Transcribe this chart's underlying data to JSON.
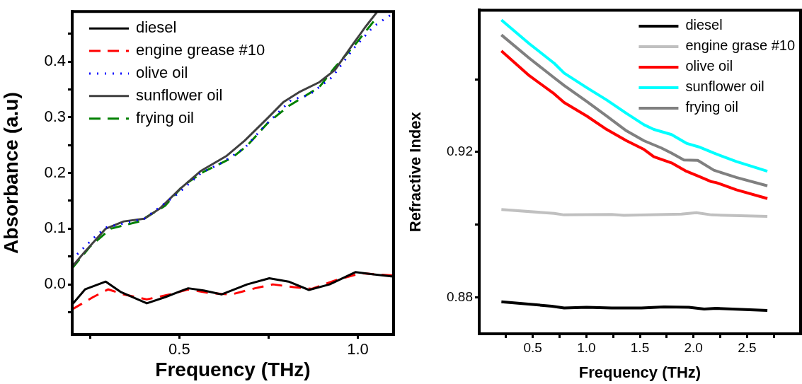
{
  "chart_data": [
    {
      "type": "line",
      "xlabel": "Frequency (THz)",
      "ylabel": "Absorbance (a.u)",
      "xlim": [
        0.2,
        1.1
      ],
      "ylim": [
        -0.09,
        0.49
      ],
      "xticks": [
        {
          "value": 0.25,
          "label": null
        },
        {
          "value": 0.5,
          "label": "0.5"
        },
        {
          "value": 0.75,
          "label": null
        },
        {
          "value": 1.0,
          "label": "1.0"
        }
      ],
      "yticks": [
        {
          "value": -0.05,
          "label": null
        },
        {
          "value": 0,
          "label": "0.0"
        },
        {
          "value": 0.05,
          "label": null
        },
        {
          "value": 0.1,
          "label": "0.1"
        },
        {
          "value": 0.15,
          "label": null
        },
        {
          "value": 0.2,
          "label": "0.2"
        },
        {
          "value": 0.25,
          "label": null
        },
        {
          "value": 0.3,
          "label": "0.3"
        },
        {
          "value": 0.35,
          "label": null
        },
        {
          "value": 0.4,
          "label": "0.4"
        },
        {
          "value": 0.45,
          "label": null
        }
      ],
      "legend": "top left",
      "marker": "none",
      "series": [
        {
          "name": "diesel",
          "color": "#000000",
          "line_style": "solid",
          "x": [
            0.2,
            0.236,
            0.294,
            0.337,
            0.409,
            0.46,
            0.525,
            0.568,
            0.618,
            0.69,
            0.752,
            0.806,
            0.863,
            0.921,
            0.993,
            1.044,
            1.098
          ],
          "values": [
            -0.036,
            -0.009,
            0.005,
            -0.014,
            -0.034,
            -0.023,
            -0.007,
            -0.011,
            -0.018,
            0.0,
            0.011,
            0.005,
            -0.01,
            0.0,
            0.022,
            0.018,
            0.014
          ]
        },
        {
          "name": "engine grease #10",
          "color": "#ff0000",
          "line_style": "dashed",
          "x": [
            0.2,
            0.258,
            0.301,
            0.344,
            0.409,
            0.474,
            0.525,
            0.589,
            0.647,
            0.712,
            0.762,
            0.82,
            0.871,
            0.936,
            1.008,
            1.098
          ],
          "values": [
            -0.045,
            -0.023,
            -0.009,
            -0.018,
            -0.027,
            -0.018,
            -0.009,
            -0.016,
            -0.018,
            -0.007,
            0.0,
            -0.005,
            -0.008,
            0.007,
            0.02,
            0.016
          ]
        },
        {
          "name": "olive oil",
          "color": "#0000ff",
          "line_style": "dotted",
          "x": [
            0.214,
            0.258,
            0.294,
            0.402,
            0.496,
            0.561,
            0.618,
            0.683,
            0.741,
            0.813,
            0.863,
            0.928,
            0.986,
            1.044,
            1.09
          ],
          "values": [
            0.054,
            0.082,
            0.102,
            0.118,
            0.163,
            0.2,
            0.218,
            0.245,
            0.286,
            0.331,
            0.34,
            0.372,
            0.422,
            0.463,
            0.483
          ]
        },
        {
          "name": "sunflower oil",
          "color": "#404040",
          "line_style": "solid",
          "x": [
            0.2,
            0.236,
            0.294,
            0.344,
            0.402,
            0.445,
            0.503,
            0.561,
            0.633,
            0.683,
            0.748,
            0.791,
            0.835,
            0.892,
            0.936,
            0.986,
            1.022,
            1.055
          ],
          "values": [
            0.032,
            0.059,
            0.1,
            0.113,
            0.118,
            0.136,
            0.172,
            0.204,
            0.231,
            0.258,
            0.299,
            0.327,
            0.345,
            0.363,
            0.385,
            0.431,
            0.463,
            0.49
          ]
        },
        {
          "name": "frying oil",
          "color": "#008000",
          "line_style": "dashed",
          "x": [
            0.2,
            0.25,
            0.308,
            0.388,
            0.46,
            0.51,
            0.568,
            0.647,
            0.69,
            0.748,
            0.806,
            0.892,
            0.936,
            0.993,
            1.044
          ],
          "values": [
            0.029,
            0.068,
            0.1,
            0.113,
            0.141,
            0.177,
            0.202,
            0.227,
            0.249,
            0.29,
            0.32,
            0.354,
            0.39,
            0.431,
            0.472
          ]
        }
      ]
    },
    {
      "type": "line",
      "xlabel": "Frequency (THz)",
      "ylabel": "Refractive Index",
      "xlim": [
        0,
        3
      ],
      "ylim": [
        0.87,
        0.959
      ],
      "xticks": [
        {
          "value": 0.25,
          "label": null
        },
        {
          "value": 0.5,
          "label": "0.5"
        },
        {
          "value": 0.75,
          "label": null
        },
        {
          "value": 1.0,
          "label": "1.0"
        },
        {
          "value": 1.25,
          "label": null
        },
        {
          "value": 1.5,
          "label": "1.5"
        },
        {
          "value": 1.75,
          "label": null
        },
        {
          "value": 2.0,
          "label": "2.0"
        },
        {
          "value": 2.25,
          "label": null
        },
        {
          "value": 2.5,
          "label": "2.5"
        },
        {
          "value": 2.75,
          "label": null
        }
      ],
      "yticks": [
        {
          "value": 0.88,
          "label": "0.88"
        },
        {
          "value": 0.9,
          "label": null
        },
        {
          "value": 0.92,
          "label": "0.92"
        },
        {
          "value": 0.94,
          "label": null
        }
      ],
      "legend": "top right",
      "marker": "none",
      "series": [
        {
          "name": "diesel",
          "color": "#000000",
          "line_style": "solid",
          "x": [
            0.207,
            0.677,
            0.793,
            1.003,
            1.236,
            1.515,
            1.725,
            1.957,
            2.1,
            2.21,
            2.69
          ],
          "values": [
            0.8788,
            0.8776,
            0.8771,
            0.8773,
            0.8771,
            0.8771,
            0.8774,
            0.8773,
            0.8768,
            0.877,
            0.8764
          ]
        },
        {
          "name": "engine grase #10",
          "color": "#c0c0c0",
          "line_style": "solid",
          "x": [
            0.207,
            0.7,
            0.793,
            1.236,
            1.35,
            1.888,
            2.027,
            2.17,
            2.69
          ],
          "values": [
            0.9042,
            0.9031,
            0.9027,
            0.9028,
            0.9026,
            0.9029,
            0.9033,
            0.9027,
            0.9023
          ]
        },
        {
          "name": "olive oil",
          "color": "#ff0000",
          "line_style": "solid",
          "x": [
            0.207,
            0.467,
            0.7,
            0.793,
            1.003,
            1.19,
            1.375,
            1.538,
            1.63,
            1.795,
            1.934,
            2.05,
            2.17,
            2.21,
            2.4,
            2.69
          ],
          "values": [
            0.9478,
            0.941,
            0.936,
            0.9336,
            0.9299,
            0.9262,
            0.9231,
            0.9207,
            0.9187,
            0.917,
            0.9147,
            0.9133,
            0.9118,
            0.9116,
            0.9096,
            0.9072
          ]
        },
        {
          "name": "sunflower oil",
          "color": "#00ffff",
          "line_style": "solid",
          "x": [
            0.207,
            0.467,
            0.7,
            0.793,
            1.003,
            1.19,
            1.375,
            1.538,
            1.63,
            1.795,
            1.934,
            2.05,
            2.19,
            2.4,
            2.69
          ],
          "values": [
            0.9563,
            0.9498,
            0.9444,
            0.9417,
            0.9377,
            0.9343,
            0.9306,
            0.9275,
            0.9262,
            0.9248,
            0.9224,
            0.9214,
            0.9197,
            0.9174,
            0.9147
          ]
        },
        {
          "name": "frying oil",
          "color": "#808080",
          "line_style": "solid",
          "x": [
            0.207,
            0.467,
            0.7,
            0.793,
            1.003,
            1.19,
            1.375,
            1.538,
            1.7,
            1.795,
            1.911,
            2.04,
            2.19,
            2.4,
            2.69
          ],
          "values": [
            0.9522,
            0.9458,
            0.9404,
            0.9383,
            0.9339,
            0.9299,
            0.9258,
            0.9231,
            0.9211,
            0.9197,
            0.9178,
            0.9177,
            0.915,
            0.913,
            0.9107
          ]
        }
      ]
    }
  ]
}
